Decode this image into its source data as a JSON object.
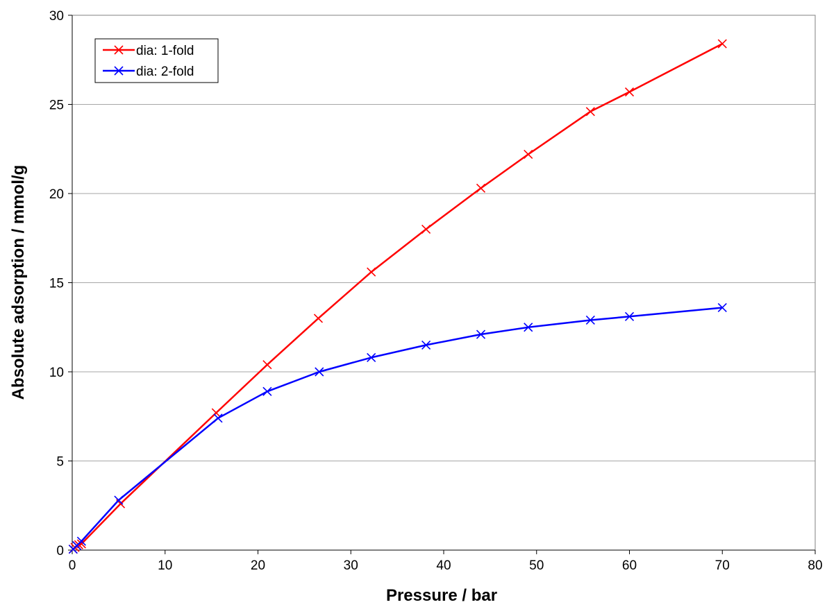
{
  "chart_data": {
    "type": "line",
    "title": "",
    "xlabel": "Pressure / bar",
    "ylabel": "Absolute adsorption / mmol/g",
    "xlim": [
      0,
      80
    ],
    "ylim": [
      0,
      30
    ],
    "xticks": [
      0,
      10,
      20,
      30,
      40,
      50,
      60,
      70,
      80
    ],
    "yticks": [
      0,
      5,
      10,
      15,
      20,
      25,
      30
    ],
    "grid": "horizontal",
    "legend_position": "top-left",
    "marker": "x",
    "series": [
      {
        "name": "dia: 1-fold",
        "color": "#ff0000",
        "x": [
          0.1,
          0.3,
          0.5,
          0.7,
          1.0,
          5.2,
          15.5,
          21.0,
          26.5,
          32.2,
          38.1,
          44.0,
          49.1,
          55.8,
          60.0,
          70.0
        ],
        "y": [
          0.05,
          0.15,
          0.25,
          0.3,
          0.35,
          2.6,
          7.7,
          10.4,
          13.0,
          15.6,
          18.0,
          20.3,
          22.2,
          24.6,
          25.7,
          28.4
        ]
      },
      {
        "name": "dia: 2-fold",
        "color": "#0000ff",
        "x": [
          0.1,
          0.5,
          1.0,
          5.0,
          15.7,
          21.0,
          26.6,
          32.2,
          38.1,
          44.0,
          49.1,
          55.8,
          60.0,
          70.0
        ],
        "y": [
          0.05,
          0.25,
          0.5,
          2.8,
          7.4,
          8.9,
          10.0,
          10.8,
          11.5,
          12.1,
          12.5,
          12.9,
          13.1,
          13.6
        ]
      }
    ]
  }
}
